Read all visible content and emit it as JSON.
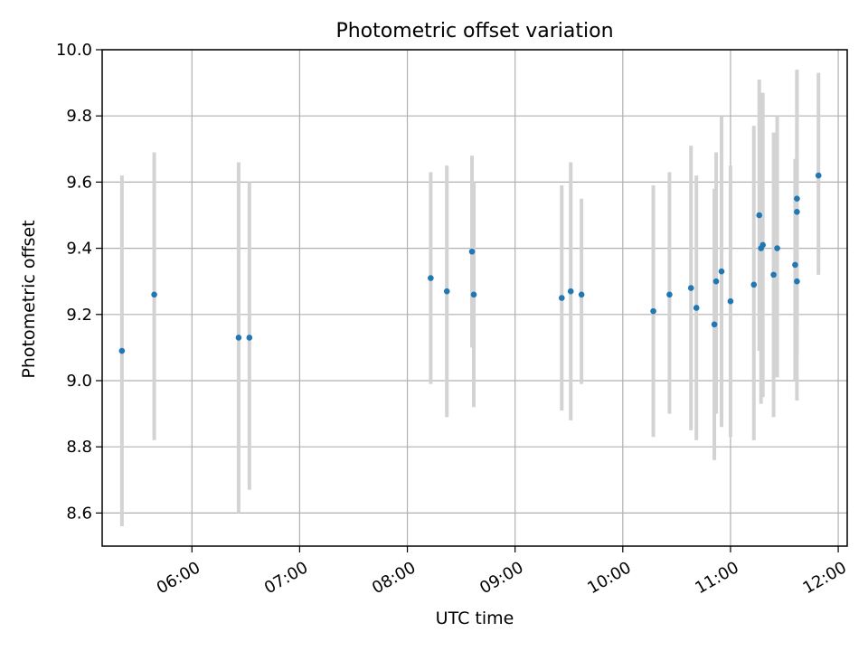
{
  "chart_data": {
    "type": "scatter",
    "title": "Photometric offset variation",
    "xlabel": "UTC time",
    "ylabel": "Photometric offset",
    "xlim": [
      "05:10",
      "12:05"
    ],
    "ylim": [
      8.5,
      10.0
    ],
    "xticks": [
      "06:00",
      "07:00",
      "08:00",
      "09:00",
      "10:00",
      "11:00",
      "12:00"
    ],
    "yticks": [
      "8.6",
      "8.8",
      "9.0",
      "9.2",
      "9.4",
      "9.6",
      "9.8",
      "10.0"
    ],
    "grid": true,
    "marker_color": "#1f77b4",
    "errorbar_color": "#d3d3d3",
    "points": [
      {
        "t": "05:21",
        "y": 9.09,
        "lo": 8.56,
        "hi": 9.62
      },
      {
        "t": "05:39",
        "y": 9.26,
        "lo": 8.82,
        "hi": 9.69
      },
      {
        "t": "06:26",
        "y": 9.13,
        "lo": 8.6,
        "hi": 9.66
      },
      {
        "t": "06:32",
        "y": 9.13,
        "lo": 8.67,
        "hi": 9.6
      },
      {
        "t": "08:13",
        "y": 9.31,
        "lo": 8.99,
        "hi": 9.63
      },
      {
        "t": "08:22",
        "y": 9.27,
        "lo": 8.89,
        "hi": 9.65
      },
      {
        "t": "08:36",
        "y": 9.39,
        "lo": 9.1,
        "hi": 9.68
      },
      {
        "t": "08:37",
        "y": 9.26,
        "lo": 8.92,
        "hi": 9.6
      },
      {
        "t": "09:26",
        "y": 9.25,
        "lo": 8.91,
        "hi": 9.59
      },
      {
        "t": "09:31",
        "y": 9.27,
        "lo": 8.88,
        "hi": 9.66
      },
      {
        "t": "09:37",
        "y": 9.26,
        "lo": 8.99,
        "hi": 9.55
      },
      {
        "t": "10:17",
        "y": 9.21,
        "lo": 8.83,
        "hi": 9.59
      },
      {
        "t": "10:26",
        "y": 9.26,
        "lo": 8.9,
        "hi": 9.63
      },
      {
        "t": "10:38",
        "y": 9.28,
        "lo": 8.85,
        "hi": 9.71
      },
      {
        "t": "10:41",
        "y": 9.22,
        "lo": 8.82,
        "hi": 9.62
      },
      {
        "t": "10:51",
        "y": 9.17,
        "lo": 8.76,
        "hi": 9.58
      },
      {
        "t": "10:52",
        "y": 9.3,
        "lo": 8.9,
        "hi": 9.69
      },
      {
        "t": "10:55",
        "y": 9.33,
        "lo": 8.86,
        "hi": 9.8
      },
      {
        "t": "11:00",
        "y": 9.24,
        "lo": 8.83,
        "hi": 9.65
      },
      {
        "t": "11:13",
        "y": 9.29,
        "lo": 8.82,
        "hi": 9.77
      },
      {
        "t": "11:16",
        "y": 9.5,
        "lo": 9.09,
        "hi": 9.91
      },
      {
        "t": "11:17",
        "y": 9.4,
        "lo": 8.93,
        "hi": 9.87
      },
      {
        "t": "11:18",
        "y": 9.41,
        "lo": 8.95,
        "hi": 9.87
      },
      {
        "t": "11:24",
        "y": 9.32,
        "lo": 8.89,
        "hi": 9.75
      },
      {
        "t": "11:26",
        "y": 9.4,
        "lo": 9.01,
        "hi": 9.8
      },
      {
        "t": "11:36",
        "y": 9.35,
        "lo": 9.0,
        "hi": 9.67
      },
      {
        "t": "11:37",
        "y": 9.55,
        "lo": 9.16,
        "hi": 9.94
      },
      {
        "t": "11:37",
        "y": 9.51,
        "lo": 9.08,
        "hi": 9.93
      },
      {
        "t": "11:37",
        "y": 9.3,
        "lo": 8.94,
        "hi": 9.67
      },
      {
        "t": "11:49",
        "y": 9.62,
        "lo": 9.32,
        "hi": 9.93
      }
    ]
  }
}
